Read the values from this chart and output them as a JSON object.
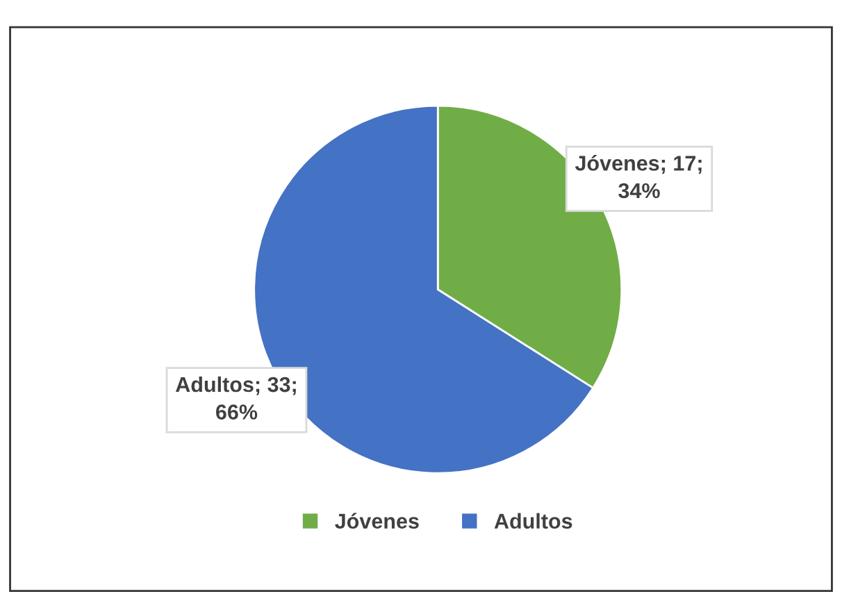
{
  "chart_data": {
    "type": "pie",
    "categories": [
      "Jóvenes",
      "Adultos"
    ],
    "values": [
      17,
      33
    ],
    "colors": [
      "#70ad47",
      "#4472c4"
    ],
    "value_labels": [
      "Jóvenes; 17;\n34%",
      "Adultos; 33;\n66%"
    ],
    "legend": "bottom"
  }
}
